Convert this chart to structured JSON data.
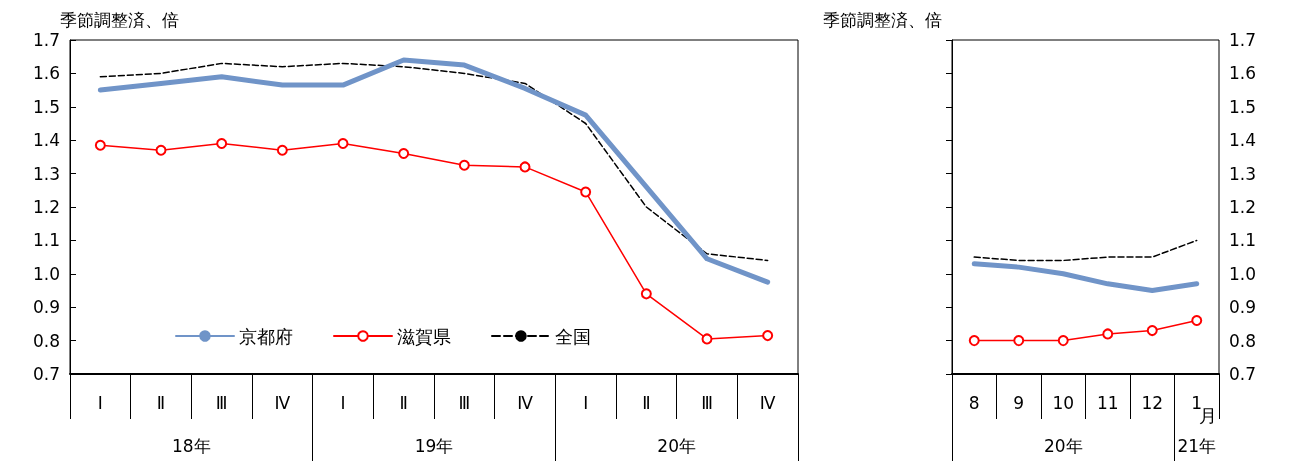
{
  "chart_data": [
    {
      "type": "line",
      "ylabel": "季節調整済、倍",
      "categories": [
        "Ⅰ",
        "Ⅱ",
        "Ⅲ",
        "Ⅳ",
        "Ⅰ",
        "Ⅱ",
        "Ⅲ",
        "Ⅳ",
        "Ⅰ",
        "Ⅱ",
        "Ⅲ",
        "Ⅳ"
      ],
      "series": [
        {
          "name": "京都府",
          "color": "#7094c8",
          "marker": "none",
          "line_style": "solid",
          "values": [
            1.55,
            1.57,
            1.59,
            1.565,
            1.565,
            1.64,
            1.625,
            1.555,
            1.475,
            1.26,
            1.045,
            0.975
          ]
        },
        {
          "name": "滋賀県",
          "color": "#ff0000",
          "marker": "circle",
          "line_style": "solid",
          "values": [
            1.385,
            1.37,
            1.39,
            1.37,
            1.39,
            1.36,
            1.325,
            1.32,
            1.245,
            0.94,
            0.805,
            0.815
          ]
        },
        {
          "name": "全国",
          "color": "#000000",
          "marker": "none",
          "line_style": "dashed",
          "values": [
            1.59,
            1.6,
            1.63,
            1.62,
            1.63,
            1.62,
            1.6,
            1.57,
            1.45,
            1.2,
            1.06,
            1.04
          ]
        }
      ],
      "ylim": [
        0.7,
        1.7
      ],
      "yticks": [
        0.7,
        0.8,
        0.9,
        {
          "value": 1,
          "label": "1.0"
        },
        1.1,
        1.2,
        1.3,
        1.4,
        1.5,
        1.6,
        1.7
      ],
      "grid": false,
      "legend": "bottom",
      "annotations": [
        "18年",
        "19年",
        "20年"
      ]
    },
    {
      "type": "line",
      "y2label": "季節調整済、倍",
      "categories": [
        "8",
        "9",
        "10",
        "11",
        "12",
        "1"
      ],
      "series": [
        {
          "color": "#7094c8",
          "marker": "none",
          "line_style": "solid",
          "axis": "y2",
          "values": [
            1.03,
            1.02,
            1.0,
            0.97,
            0.95,
            0.97
          ]
        },
        {
          "color": "#ff0000",
          "marker": "circle",
          "line_style": "solid",
          "axis": "y2",
          "values": [
            0.8,
            0.8,
            0.8,
            0.82,
            0.83,
            0.86
          ]
        },
        {
          "color": "#000000",
          "marker": "none",
          "line_style": "dashed",
          "axis": "y2",
          "values": [
            1.05,
            1.04,
            1.04,
            1.05,
            1.05,
            1.1
          ]
        }
      ],
      "y2lim": [
        0.7,
        1.7
      ],
      "y2ticks": [
        0.7,
        0.8,
        0.9,
        {
          "value": 1,
          "label": "1.0"
        },
        1.1,
        1.2,
        1.3,
        1.4,
        1.5,
        1.6,
        1.7
      ],
      "grid": false,
      "legend": false,
      "annotations": [
        "20年",
        "21年",
        "月"
      ]
    }
  ]
}
